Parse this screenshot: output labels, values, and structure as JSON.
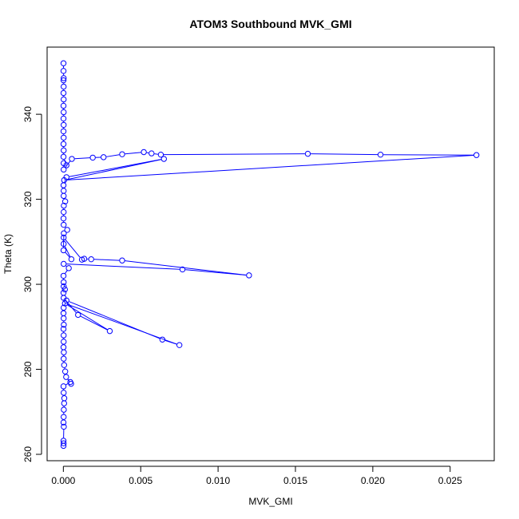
{
  "chart_data": {
    "type": "scatter",
    "title": "ATOM3 Southbound MVK_GMI",
    "xlabel": "MVK_GMI",
    "ylabel": "Theta (K)",
    "xlim": [
      -0.00105,
      0.02785
    ],
    "ylim": [
      258.5,
      355.8
    ],
    "x_ticks": [
      0.0,
      0.005,
      0.01,
      0.015,
      0.02,
      0.025
    ],
    "x_tick_labels": [
      "0.000",
      "0.005",
      "0.010",
      "0.015",
      "0.020",
      "0.025"
    ],
    "y_ticks": [
      260,
      280,
      300,
      320,
      340
    ],
    "y_tick_labels": [
      "260",
      "280",
      "300",
      "320",
      "340"
    ],
    "series": [
      {
        "color": "#0000ff",
        "marker": "open-circle",
        "connected": true,
        "points": [
          [
            1e-05,
            262.0
          ],
          [
            2e-05,
            262.6
          ],
          [
            1e-05,
            263.2
          ],
          [
            3e-05,
            266.5
          ],
          [
            1e-05,
            267.5
          ],
          [
            2e-05,
            268.8
          ],
          [
            3e-05,
            270.5
          ],
          [
            5e-05,
            272.0
          ],
          [
            6e-05,
            273.2
          ],
          [
            2e-05,
            274.5
          ],
          [
            1e-05,
            276.0
          ],
          [
            0.00045,
            277.0
          ],
          [
            0.0005,
            276.6
          ],
          [
            0.00018,
            278.2
          ],
          [
            0.00012,
            279.5
          ],
          [
            5e-05,
            281.0
          ],
          [
            2e-05,
            282.5
          ],
          [
            3e-05,
            284.0
          ],
          [
            1e-05,
            285.2
          ],
          [
            2e-05,
            286.5
          ],
          [
            2e-05,
            288.0
          ],
          [
            1e-05,
            289.5
          ],
          [
            3e-05,
            290.5
          ],
          [
            2e-05,
            292.0
          ],
          [
            1e-05,
            293.2
          ],
          [
            2e-05,
            294.5
          ],
          [
            0.0002,
            296.2
          ],
          [
            0.0064,
            287.0
          ],
          [
            0.0075,
            285.7
          ],
          [
            0.0001,
            295.5
          ],
          [
            0.003,
            289.0
          ],
          [
            0.00095,
            292.8
          ],
          [
            2e-05,
            296.8
          ],
          [
            1e-05,
            298.0
          ],
          [
            2e-05,
            299.5
          ],
          [
            0.0001,
            298.8
          ],
          [
            2e-05,
            300.5
          ],
          [
            1e-05,
            302.0
          ],
          [
            0.00035,
            303.8
          ],
          [
            2e-05,
            304.8
          ],
          [
            0.0077,
            303.5
          ],
          [
            0.012,
            302.1
          ],
          [
            0.0038,
            305.6
          ],
          [
            0.0018,
            305.9
          ],
          [
            0.00135,
            306.0
          ],
          [
            0.0012,
            305.8
          ],
          [
            2e-05,
            311.0
          ],
          [
            1e-05,
            308.0
          ],
          [
            0.00052,
            305.9
          ],
          [
            2e-05,
            309.5
          ],
          [
            3e-05,
            312.0
          ],
          [
            0.00025,
            312.8
          ],
          [
            2e-05,
            314.0
          ],
          [
            1e-05,
            315.5
          ],
          [
            2e-05,
            317.0
          ],
          [
            3e-05,
            318.5
          ],
          [
            0.00012,
            319.5
          ],
          [
            2e-05,
            320.8
          ],
          [
            2e-05,
            322.0
          ],
          [
            1e-05,
            323.3
          ],
          [
            0.0002,
            325.2
          ],
          [
            0.0065,
            329.5
          ],
          [
            5e-05,
            324.5
          ],
          [
            0.0267,
            330.4
          ],
          [
            0.0205,
            330.5
          ],
          [
            0.0158,
            330.7
          ],
          [
            0.0063,
            330.5
          ],
          [
            0.0057,
            330.8
          ],
          [
            0.0052,
            331.1
          ],
          [
            0.0038,
            330.6
          ],
          [
            0.0026,
            329.9
          ],
          [
            0.0019,
            329.8
          ],
          [
            0.00055,
            329.5
          ],
          [
            2e-05,
            327.0
          ],
          [
            2e-05,
            328.5
          ],
          [
            0.0002,
            328.0
          ],
          [
            1e-05,
            330.0
          ],
          [
            2e-05,
            331.5
          ],
          [
            1e-05,
            333.0
          ],
          [
            2e-05,
            334.5
          ],
          [
            1e-05,
            336.0
          ],
          [
            2e-05,
            337.5
          ],
          [
            1e-05,
            339.0
          ],
          [
            2e-05,
            340.5
          ],
          [
            1e-05,
            342.0
          ],
          [
            2e-05,
            343.5
          ],
          [
            1e-05,
            345.0
          ],
          [
            2e-05,
            346.5
          ],
          [
            1e-05,
            348.0
          ],
          [
            2e-05,
            348.5
          ],
          [
            1e-05,
            350.2
          ],
          [
            1e-05,
            352.0
          ]
        ]
      }
    ]
  }
}
